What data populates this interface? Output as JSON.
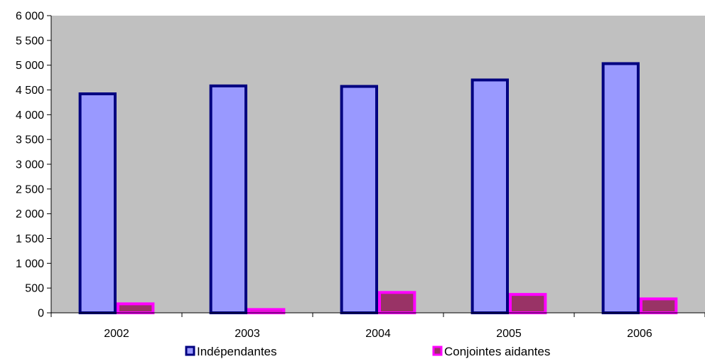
{
  "chart_data": {
    "type": "bar",
    "categories": [
      "2002",
      "2003",
      "2004",
      "2005",
      "2006"
    ],
    "series": [
      {
        "name": "Indépendantes",
        "values": [
          4450,
          4610,
          4600,
          4730,
          5060
        ],
        "fill": "#9999ff",
        "stroke": "#000080"
      },
      {
        "name": "Conjointes aidantes",
        "values": [
          210,
          95,
          440,
          400,
          310
        ],
        "fill": "#993366",
        "stroke": "#ff00ff"
      }
    ],
    "yticks": [
      "0",
      "500",
      "1 000",
      "1 500",
      "2 000",
      "2 500",
      "3 000",
      "3 500",
      "4 000",
      "4 500",
      "5 000",
      "5 500",
      "6 000"
    ],
    "ylim": [
      0,
      6000
    ],
    "ystep": 500,
    "grid": false,
    "plot_background": "#c0c0c0",
    "legend_position": "bottom",
    "title": "",
    "xlabel": "",
    "ylabel": ""
  }
}
